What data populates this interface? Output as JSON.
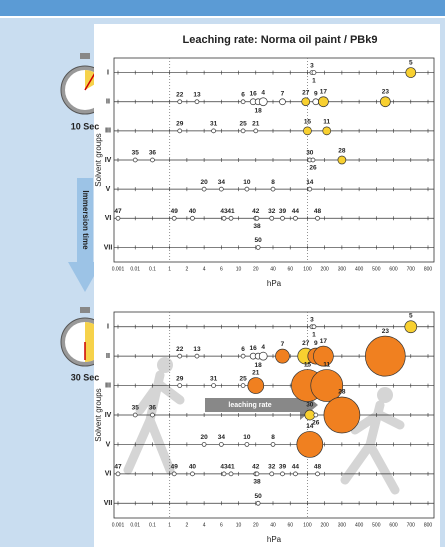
{
  "chart_data": [
    {
      "type": "scatter",
      "title": "Leaching rate: Norma oil paint / PBk9",
      "time_label": "10 Sec",
      "y_label": "Solvent groups",
      "x_label": "hPa",
      "categories": [
        "I",
        "II",
        "III",
        "IV",
        "V",
        "VI",
        "VII"
      ],
      "xticks": [
        0.001,
        0.01,
        0.1,
        1,
        2,
        4,
        6,
        10,
        20,
        40,
        60,
        100,
        200,
        300,
        400,
        500,
        600,
        700,
        800
      ],
      "xlim": [
        0.001,
        800
      ],
      "reference_lines": [
        1,
        100
      ],
      "points": [
        {
          "label": "3",
          "group": "I",
          "x": 120,
          "size": 2,
          "color": "#ffffff"
        },
        {
          "label": "1",
          "group": "I",
          "x": 130,
          "size": 2,
          "color": "#ffffff"
        },
        {
          "label": "5",
          "group": "I",
          "x": 700,
          "size": 5,
          "color": "#f8d030"
        },
        {
          "label": "22",
          "group": "II",
          "x": 1.5,
          "size": 2,
          "color": "#ffffff"
        },
        {
          "label": "13",
          "group": "II",
          "x": 3,
          "size": 2,
          "color": "#ffffff"
        },
        {
          "label": "6",
          "group": "II",
          "x": 12,
          "size": 2,
          "color": "#ffffff"
        },
        {
          "label": "16",
          "group": "II",
          "x": 18,
          "size": 3,
          "color": "#ffffff"
        },
        {
          "label": "18",
          "group": "II",
          "x": 22,
          "size": 3,
          "color": "#ffffff"
        },
        {
          "label": "4",
          "group": "II",
          "x": 27,
          "size": 4,
          "color": "#ffffff"
        },
        {
          "label": "7",
          "group": "II",
          "x": 50,
          "size": 3,
          "color": "#ffffff"
        },
        {
          "label": "27",
          "group": "II",
          "x": 95,
          "size": 4,
          "color": "#f8d030"
        },
        {
          "label": "9",
          "group": "II",
          "x": 140,
          "size": 3,
          "color": "#ffffff"
        },
        {
          "label": "17",
          "group": "II",
          "x": 190,
          "size": 5,
          "color": "#f8d030"
        },
        {
          "label": "23",
          "group": "II",
          "x": 550,
          "size": 5,
          "color": "#f8d030"
        },
        {
          "label": "29",
          "group": "III",
          "x": 1.5,
          "size": 2,
          "color": "#ffffff"
        },
        {
          "label": "31",
          "group": "III",
          "x": 5,
          "size": 2,
          "color": "#ffffff"
        },
        {
          "label": "25",
          "group": "III",
          "x": 12,
          "size": 2,
          "color": "#ffffff"
        },
        {
          "label": "21",
          "group": "III",
          "x": 20,
          "size": 2,
          "color": "#ffffff"
        },
        {
          "label": "15",
          "group": "III",
          "x": 100,
          "size": 4,
          "color": "#f8d030"
        },
        {
          "label": "11",
          "group": "III",
          "x": 210,
          "size": 4,
          "color": "#f8d030"
        },
        {
          "label": "35",
          "group": "IV",
          "x": 0.01,
          "size": 2,
          "color": "#ffffff"
        },
        {
          "label": "36",
          "group": "IV",
          "x": 0.1,
          "size": 2,
          "color": "#ffffff"
        },
        {
          "label": "30",
          "group": "IV",
          "x": 110,
          "size": 2,
          "color": "#ffffff"
        },
        {
          "label": "26",
          "group": "IV",
          "x": 125,
          "size": 2,
          "color": "#ffffff"
        },
        {
          "label": "28",
          "group": "IV",
          "x": 300,
          "size": 4,
          "color": "#f8d030"
        },
        {
          "label": "20",
          "group": "V",
          "x": 4,
          "size": 2,
          "color": "#ffffff"
        },
        {
          "label": "34",
          "group": "V",
          "x": 6,
          "size": 2,
          "color": "#ffffff"
        },
        {
          "label": "10",
          "group": "V",
          "x": 14,
          "size": 2,
          "color": "#ffffff"
        },
        {
          "label": "8",
          "group": "V",
          "x": 40,
          "size": 2,
          "color": "#ffffff"
        },
        {
          "label": "14",
          "group": "V",
          "x": 110,
          "size": 2,
          "color": "#ffffff"
        },
        {
          "label": "47",
          "group": "VI",
          "x": 0.001,
          "size": 2,
          "color": "#ffffff"
        },
        {
          "label": "49",
          "group": "VI",
          "x": 1.2,
          "size": 2,
          "color": "#ffffff"
        },
        {
          "label": "40",
          "group": "VI",
          "x": 2.5,
          "size": 2,
          "color": "#ffffff"
        },
        {
          "label": "43",
          "group": "VI",
          "x": 6.5,
          "size": 2,
          "color": "#ffffff"
        },
        {
          "label": "41",
          "group": "VI",
          "x": 8,
          "size": 2,
          "color": "#ffffff"
        },
        {
          "label": "42",
          "group": "VI",
          "x": 20,
          "size": 2,
          "color": "#ffffff"
        },
        {
          "label": "38",
          "group": "VI",
          "x": 21,
          "size": 2,
          "color": "#ffffff"
        },
        {
          "label": "32",
          "group": "VI",
          "x": 38,
          "size": 2,
          "color": "#ffffff"
        },
        {
          "label": "39",
          "group": "VI",
          "x": 50,
          "size": 2,
          "color": "#ffffff"
        },
        {
          "label": "44",
          "group": "VI",
          "x": 70,
          "size": 2,
          "color": "#ffffff"
        },
        {
          "label": "48",
          "group": "VI",
          "x": 150,
          "size": 2,
          "color": "#ffffff"
        },
        {
          "label": "50",
          "group": "VII",
          "x": 22,
          "size": 2,
          "color": "#ffffff"
        }
      ]
    },
    {
      "type": "scatter",
      "time_label": "30 Sec",
      "annotation": "leaching rate",
      "y_label": "Solvent groups",
      "x_label": "hPa",
      "categories": [
        "I",
        "II",
        "III",
        "IV",
        "V",
        "VI",
        "VII"
      ],
      "xticks": [
        0.001,
        0.01,
        0.1,
        1,
        2,
        4,
        6,
        10,
        20,
        40,
        60,
        100,
        200,
        300,
        400,
        500,
        600,
        700,
        800
      ],
      "xlim": [
        0.001,
        800
      ],
      "reference_lines": [
        1,
        100
      ],
      "points": [
        {
          "label": "3",
          "group": "I",
          "x": 120,
          "size": 2,
          "color": "#ffffff"
        },
        {
          "label": "1",
          "group": "I",
          "x": 130,
          "size": 2,
          "color": "#ffffff"
        },
        {
          "label": "5",
          "group": "I",
          "x": 700,
          "size": 6,
          "color": "#f8d030"
        },
        {
          "label": "22",
          "group": "II",
          "x": 1.5,
          "size": 2,
          "color": "#ffffff"
        },
        {
          "label": "13",
          "group": "II",
          "x": 3,
          "size": 2,
          "color": "#ffffff"
        },
        {
          "label": "6",
          "group": "II",
          "x": 12,
          "size": 2,
          "color": "#ffffff"
        },
        {
          "label": "16",
          "group": "II",
          "x": 18,
          "size": 3,
          "color": "#ffffff"
        },
        {
          "label": "18",
          "group": "II",
          "x": 22,
          "size": 3,
          "color": "#ffffff"
        },
        {
          "label": "4",
          "group": "II",
          "x": 27,
          "size": 4,
          "color": "#ffffff"
        },
        {
          "label": "7",
          "group": "II",
          "x": 50,
          "size": 7,
          "color": "#f08020"
        },
        {
          "label": "27",
          "group": "II",
          "x": 95,
          "size": 8,
          "color": "#f8d030"
        },
        {
          "label": "9",
          "group": "II",
          "x": 140,
          "size": 8,
          "color": "#f08020"
        },
        {
          "label": "17",
          "group": "II",
          "x": 190,
          "size": 10,
          "color": "#f08020"
        },
        {
          "label": "23",
          "group": "II",
          "x": 550,
          "size": 20,
          "color": "#f08020"
        },
        {
          "label": "29",
          "group": "III",
          "x": 1.5,
          "size": 2,
          "color": "#ffffff"
        },
        {
          "label": "31",
          "group": "III",
          "x": 5,
          "size": 2,
          "color": "#ffffff"
        },
        {
          "label": "25",
          "group": "III",
          "x": 12,
          "size": 2,
          "color": "#ffffff"
        },
        {
          "label": "21",
          "group": "III",
          "x": 20,
          "size": 8,
          "color": "#f08020"
        },
        {
          "label": "15",
          "group": "III",
          "x": 100,
          "size": 16,
          "color": "#f08020"
        },
        {
          "label": "11",
          "group": "III",
          "x": 210,
          "size": 16,
          "color": "#f08020"
        },
        {
          "label": "35",
          "group": "IV",
          "x": 0.01,
          "size": 2,
          "color": "#ffffff"
        },
        {
          "label": "36",
          "group": "IV",
          "x": 0.1,
          "size": 2,
          "color": "#ffffff"
        },
        {
          "label": "30",
          "group": "IV",
          "x": 110,
          "size": 5,
          "color": "#f8d030"
        },
        {
          "label": "26",
          "group": "IV",
          "x": 140,
          "size": 2,
          "color": "#ffffff"
        },
        {
          "label": "28",
          "group": "IV",
          "x": 300,
          "size": 18,
          "color": "#f08020"
        },
        {
          "label": "20",
          "group": "V",
          "x": 4,
          "size": 2,
          "color": "#ffffff"
        },
        {
          "label": "34",
          "group": "V",
          "x": 6,
          "size": 2,
          "color": "#ffffff"
        },
        {
          "label": "10",
          "group": "V",
          "x": 14,
          "size": 2,
          "color": "#ffffff"
        },
        {
          "label": "8",
          "group": "V",
          "x": 40,
          "size": 2,
          "color": "#ffffff"
        },
        {
          "label": "14",
          "group": "V",
          "x": 110,
          "size": 13,
          "color": "#f08020"
        },
        {
          "label": "47",
          "group": "VI",
          "x": 0.001,
          "size": 2,
          "color": "#ffffff"
        },
        {
          "label": "49",
          "group": "VI",
          "x": 1.2,
          "size": 2,
          "color": "#ffffff"
        },
        {
          "label": "40",
          "group": "VI",
          "x": 2.5,
          "size": 2,
          "color": "#ffffff"
        },
        {
          "label": "43",
          "group": "VI",
          "x": 6.5,
          "size": 2,
          "color": "#ffffff"
        },
        {
          "label": "41",
          "group": "VI",
          "x": 8,
          "size": 2,
          "color": "#ffffff"
        },
        {
          "label": "42",
          "group": "VI",
          "x": 20,
          "size": 2,
          "color": "#ffffff"
        },
        {
          "label": "38",
          "group": "VI",
          "x": 21,
          "size": 2,
          "color": "#ffffff"
        },
        {
          "label": "32",
          "group": "VI",
          "x": 38,
          "size": 2,
          "color": "#ffffff"
        },
        {
          "label": "39",
          "group": "VI",
          "x": 50,
          "size": 2,
          "color": "#ffffff"
        },
        {
          "label": "44",
          "group": "VI",
          "x": 70,
          "size": 2,
          "color": "#ffffff"
        },
        {
          "label": "48",
          "group": "VI",
          "x": 150,
          "size": 2,
          "color": "#ffffff"
        },
        {
          "label": "50",
          "group": "VII",
          "x": 22,
          "size": 2,
          "color": "#ffffff"
        }
      ]
    }
  ],
  "side": {
    "arrow_label": "Immersion time"
  }
}
